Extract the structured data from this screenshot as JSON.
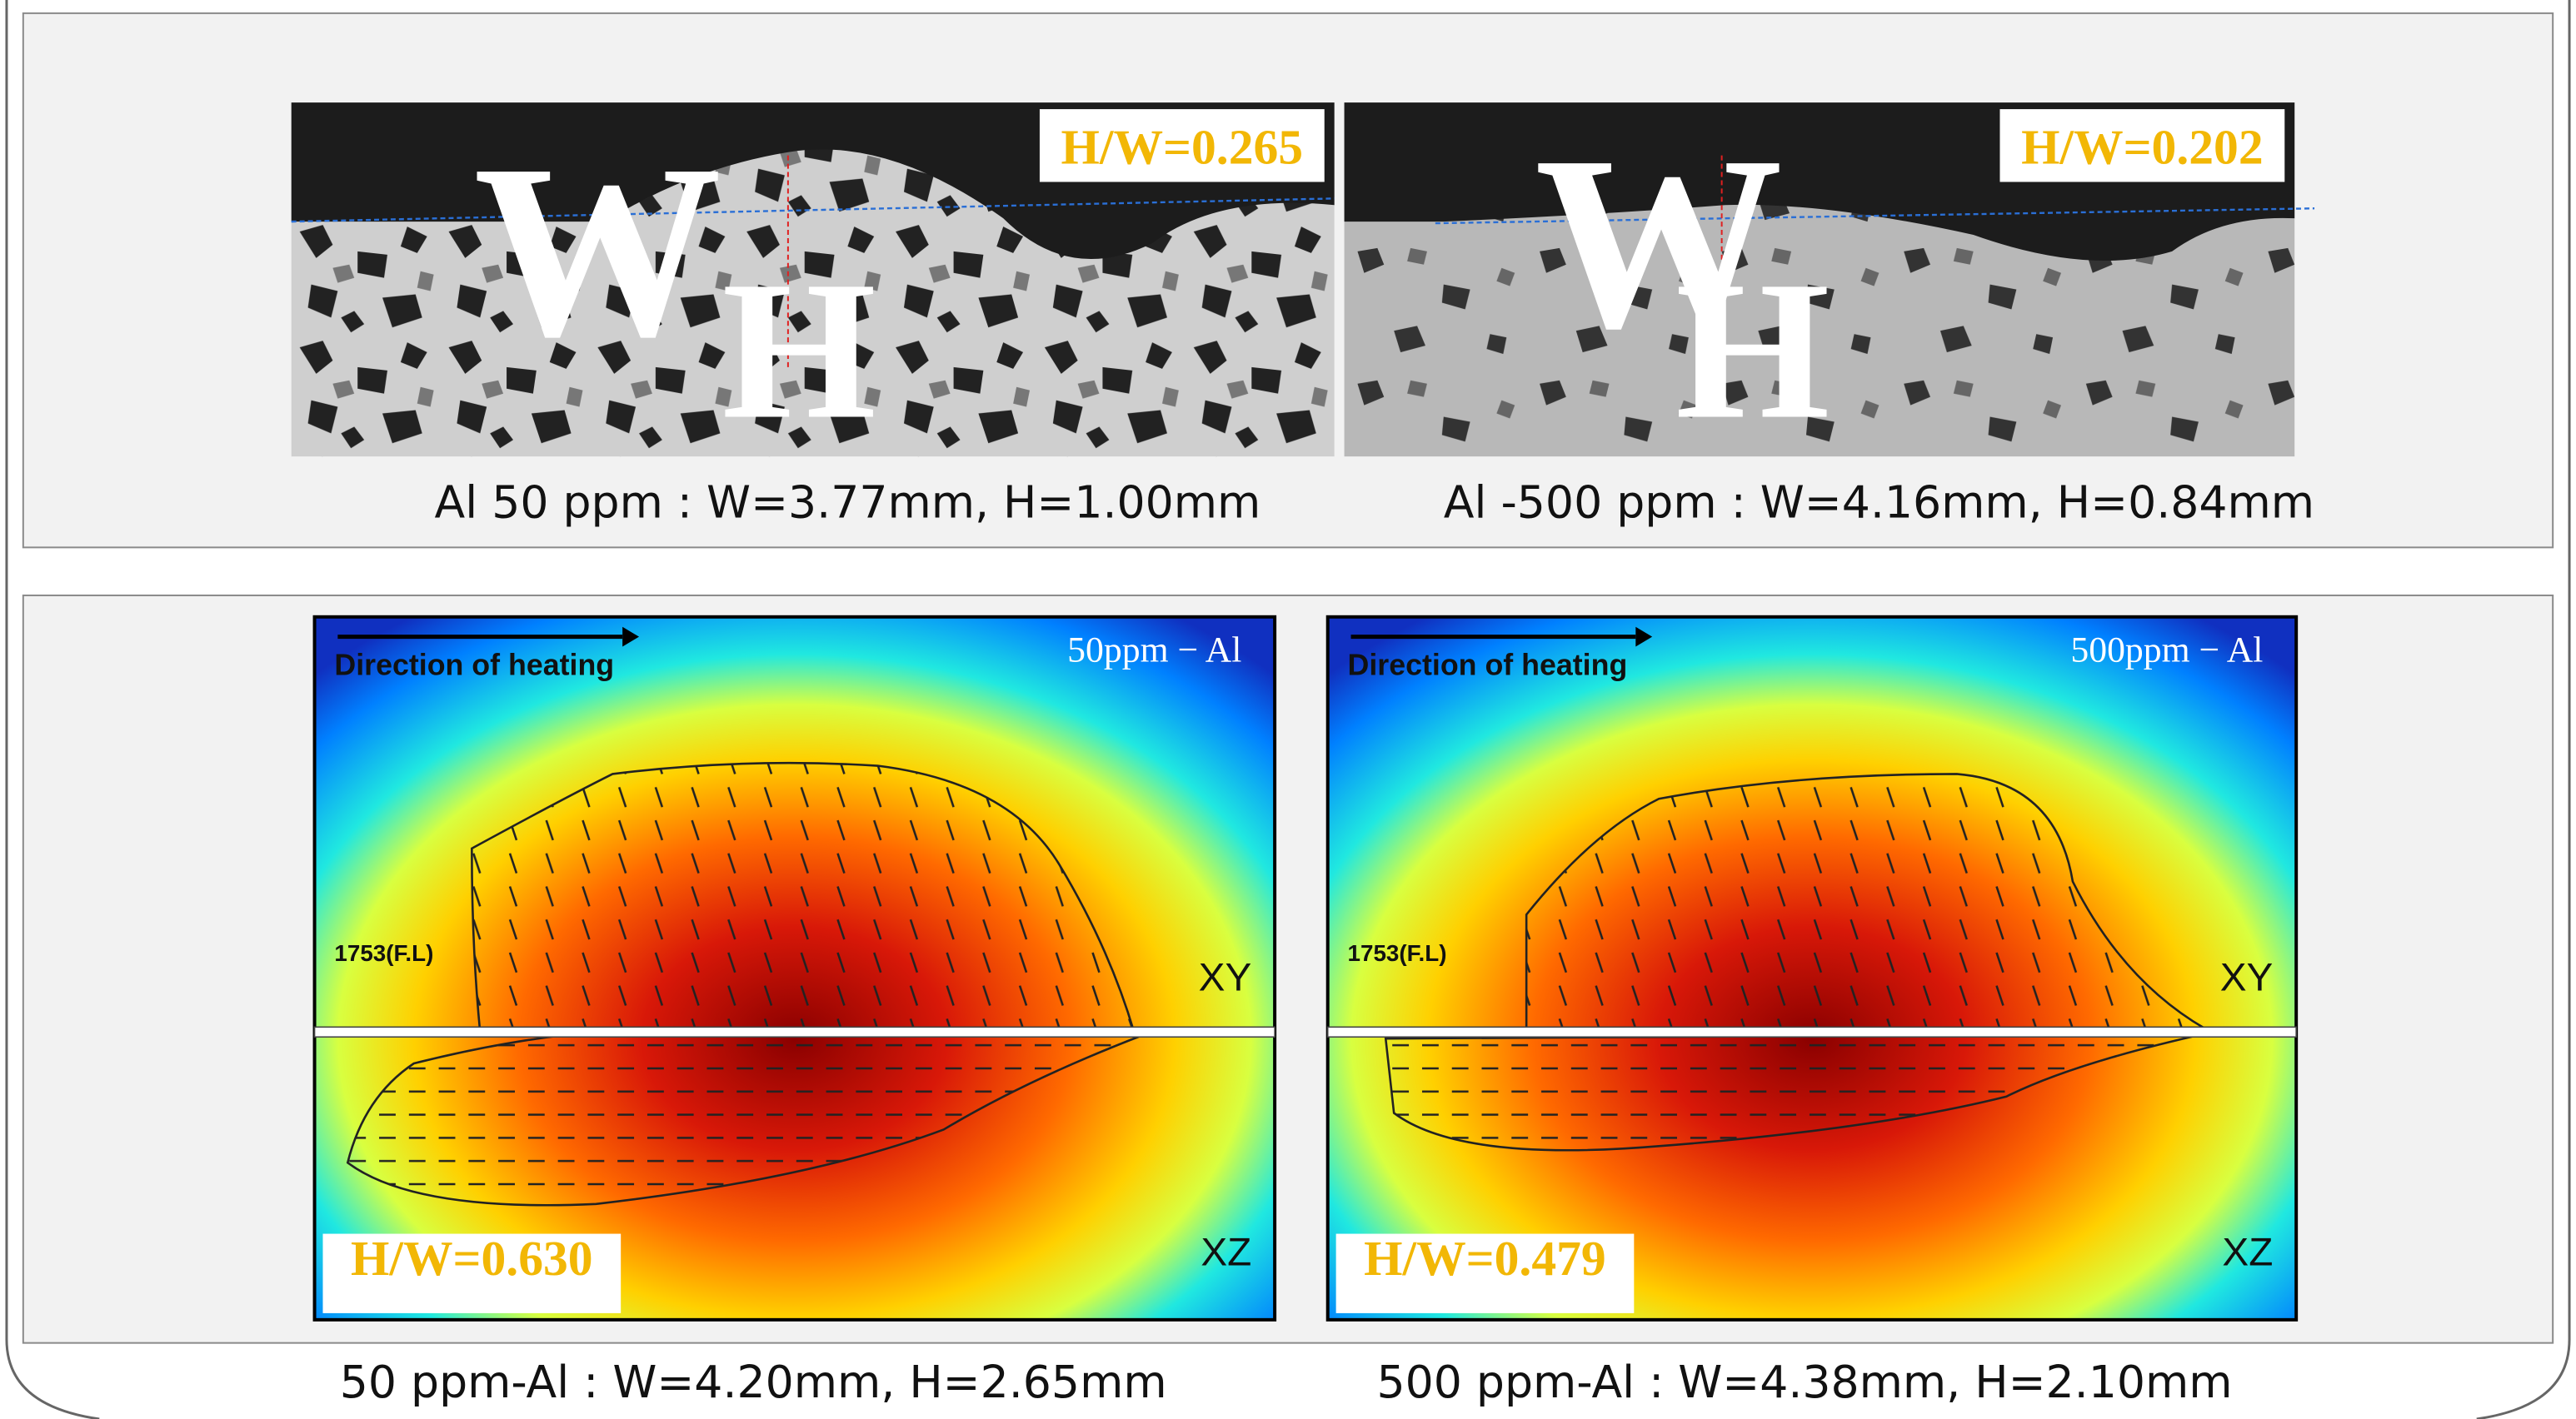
{
  "top_panel": {
    "images": [
      {
        "ratio_label": "H/W=0.265",
        "width_symbol": "W",
        "height_symbol": "H"
      },
      {
        "ratio_label": "H/W=0.202",
        "width_symbol": "W",
        "height_symbol": "H"
      }
    ],
    "captions": [
      "Al 50 ppm : W=3.77mm, H=1.00mm",
      "Al -500 ppm : W=4.16mm, H=0.84mm"
    ]
  },
  "bottom_panel": {
    "maps": [
      {
        "direction_label": "Direction of heating",
        "sample_label": "50ppm − Al",
        "fusion_line_label": "1753(F.L)",
        "plane_xy": "XY",
        "plane_xz": "XZ",
        "ratio_label": "H/W=0.630"
      },
      {
        "direction_label": "Direction of heating",
        "sample_label": "500ppm − Al",
        "fusion_line_label": "1753(F.L)",
        "plane_xy": "XY",
        "plane_xz": "XZ",
        "ratio_label": "H/W=0.479"
      }
    ],
    "captions": [
      "50 ppm-Al : W=4.20mm, H=2.65mm",
      "500 ppm-Al : W=4.38mm, H=2.10mm"
    ]
  }
}
